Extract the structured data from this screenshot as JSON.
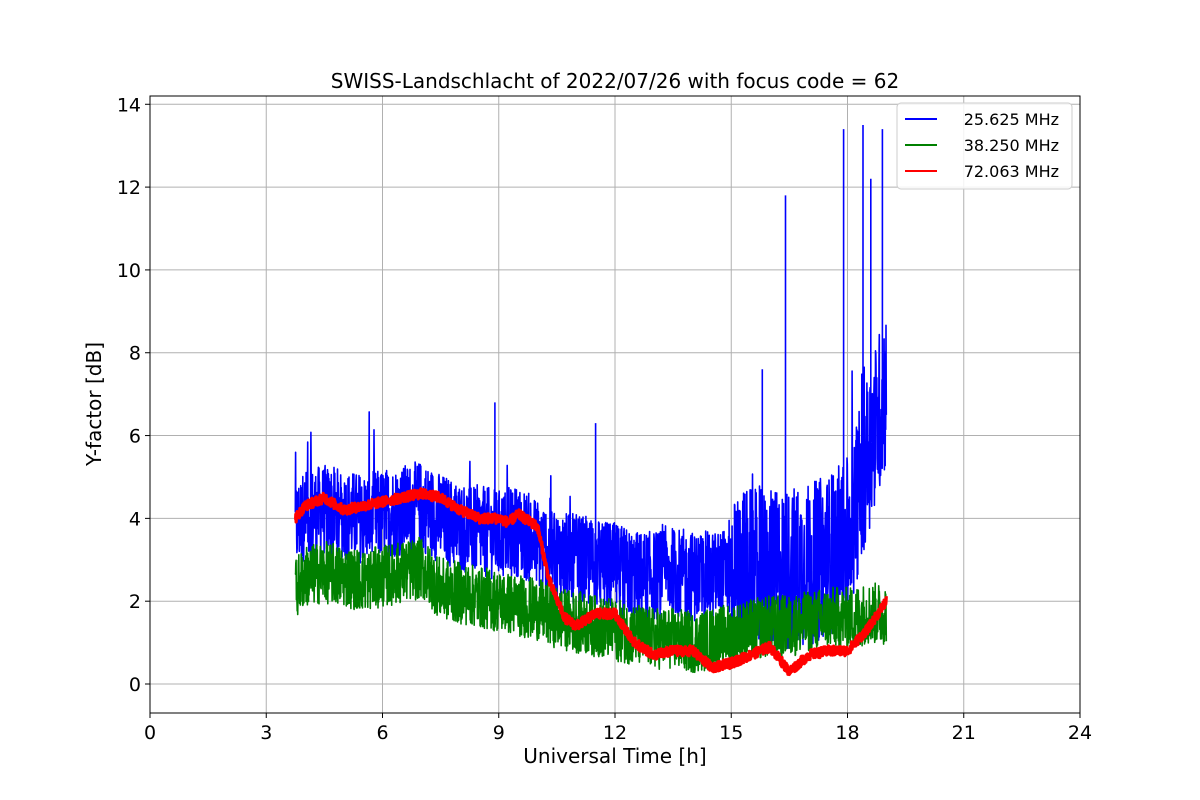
{
  "chart_data": {
    "type": "line",
    "title": "SWISS-Landschlacht of 2022/07/26 with focus code = 62",
    "xlabel": "Universal Time [h]",
    "ylabel": "Y-factor [dB]",
    "xlim": [
      0,
      24
    ],
    "ylim": [
      -0.7,
      14.2
    ],
    "xticks": [
      0,
      3,
      6,
      9,
      12,
      15,
      18,
      21,
      24
    ],
    "yticks": [
      0,
      2,
      4,
      6,
      8,
      10,
      12,
      14
    ],
    "grid": true,
    "legend_position": "top-right",
    "series": [
      {
        "name": "25.625 MHz",
        "color": "#0000ff",
        "x": [
          3.75,
          4.0,
          4.5,
          5.0,
          5.5,
          6.0,
          6.5,
          7.0,
          7.5,
          8.0,
          8.5,
          9.0,
          9.5,
          10.0,
          10.5,
          11.0,
          11.5,
          12.0,
          12.5,
          13.0,
          13.5,
          14.0,
          14.5,
          15.0,
          15.5,
          16.0,
          16.5,
          17.0,
          17.5,
          18.0,
          18.5,
          19.0
        ],
        "y": [
          3.8,
          4.1,
          4.2,
          4.1,
          4.0,
          4.1,
          4.2,
          4.3,
          4.0,
          3.8,
          3.7,
          3.6,
          3.7,
          3.4,
          3.1,
          3.0,
          2.9,
          2.8,
          2.6,
          2.6,
          2.7,
          2.6,
          2.6,
          2.7,
          2.8,
          2.7,
          2.8,
          2.9,
          3.1,
          3.5,
          5.5,
          7.2
        ],
        "spikes": [
          {
            "x": 8.9,
            "y": 6.8
          },
          {
            "x": 11.5,
            "y": 6.3
          },
          {
            "x": 15.8,
            "y": 7.6
          },
          {
            "x": 16.4,
            "y": 11.8
          },
          {
            "x": 17.9,
            "y": 13.4
          },
          {
            "x": 18.4,
            "y": 13.5
          },
          {
            "x": 18.6,
            "y": 12.2
          },
          {
            "x": 18.9,
            "y": 13.4
          }
        ]
      },
      {
        "name": "38.250 MHz",
        "color": "#008000",
        "x": [
          3.75,
          4.0,
          4.5,
          5.0,
          5.5,
          6.0,
          6.5,
          7.0,
          7.5,
          8.0,
          8.5,
          9.0,
          9.5,
          10.0,
          10.5,
          11.0,
          11.5,
          12.0,
          12.5,
          13.0,
          13.5,
          14.0,
          14.5,
          15.0,
          15.5,
          16.0,
          16.5,
          17.0,
          17.5,
          18.0,
          18.5,
          19.0
        ],
        "y": [
          2.3,
          2.6,
          2.7,
          2.6,
          2.5,
          2.6,
          2.7,
          2.8,
          2.3,
          2.2,
          2.1,
          2.0,
          1.9,
          1.8,
          1.6,
          1.5,
          1.4,
          1.3,
          1.2,
          1.1,
          1.1,
          1.0,
          1.1,
          1.2,
          1.3,
          1.4,
          1.4,
          1.5,
          1.6,
          1.6,
          1.7,
          1.7
        ]
      },
      {
        "name": "72.063 MHz",
        "color": "#ff0000",
        "x": [
          3.75,
          4.0,
          4.5,
          5.0,
          5.5,
          6.0,
          6.5,
          7.0,
          7.5,
          8.0,
          8.5,
          9.0,
          9.25,
          9.5,
          10.0,
          10.3,
          10.7,
          11.0,
          11.5,
          12.0,
          12.5,
          13.0,
          13.5,
          14.0,
          14.5,
          15.0,
          15.5,
          16.0,
          16.5,
          17.0,
          17.5,
          18.0,
          18.5,
          19.0
        ],
        "y": [
          4.0,
          4.3,
          4.5,
          4.2,
          4.3,
          4.4,
          4.5,
          4.6,
          4.5,
          4.2,
          4.0,
          4.0,
          3.9,
          4.1,
          3.8,
          2.5,
          1.6,
          1.4,
          1.7,
          1.7,
          1.0,
          0.7,
          0.8,
          0.8,
          0.4,
          0.5,
          0.7,
          0.9,
          0.3,
          0.7,
          0.8,
          0.8,
          1.3,
          2.0
        ]
      }
    ]
  }
}
